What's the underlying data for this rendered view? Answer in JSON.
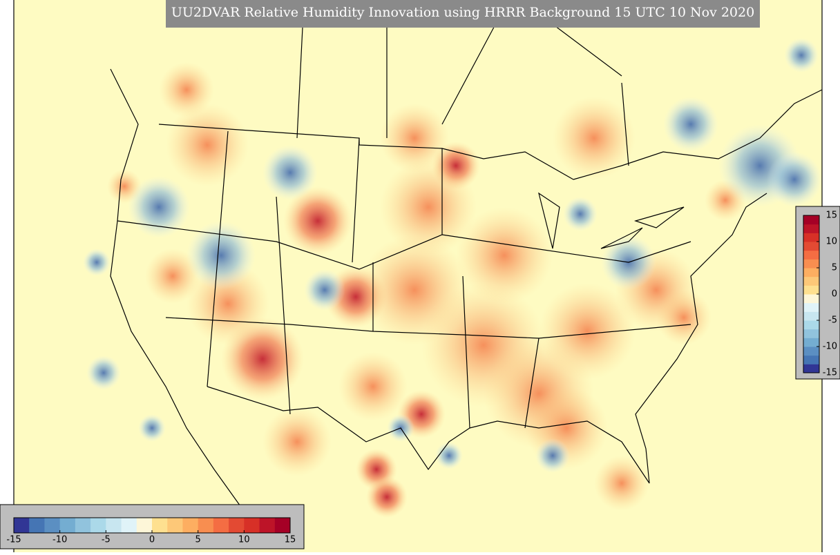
{
  "title": "UU2DVAR Relative Humidity Innovation using HRRR Background 15 UTC 10 Nov 2020",
  "colorbars": [
    {
      "orientation": "horizontal",
      "range": [
        -15,
        15
      ],
      "ticks": [
        -15,
        -10,
        -5,
        0,
        5,
        10,
        15
      ]
    },
    {
      "orientation": "vertical",
      "range": [
        -15,
        15
      ],
      "ticks": [
        15,
        10,
        5,
        0,
        -5,
        -10,
        -15
      ]
    }
  ]
}
